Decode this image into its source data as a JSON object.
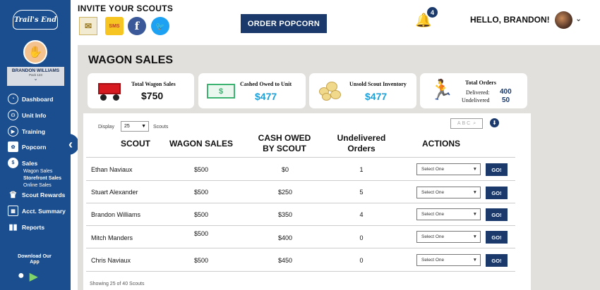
{
  "sidebar": {
    "logo_text": "Trail's End",
    "user": {
      "name": "BRANDON WILLIAMS",
      "pack": "Pack 123"
    },
    "nav": [
      {
        "label": "Dashboard",
        "icon": "gauge-icon"
      },
      {
        "label": "Unit Info",
        "icon": "users-icon"
      },
      {
        "label": "Training",
        "icon": "play-icon"
      },
      {
        "label": "Popcorn",
        "icon": "popcorn-icon"
      },
      {
        "label": "Sales",
        "icon": "dollar-icon"
      },
      {
        "label": "Scout Rewards",
        "icon": "trophy-icon"
      },
      {
        "label": "Acct. Summary",
        "icon": "calculator-icon"
      },
      {
        "label": "Reports",
        "icon": "bar-chart-icon"
      }
    ],
    "sales_sub": [
      "Wagon Sales",
      "Storefront Sales",
      "Online Sales"
    ],
    "download_text": "Download Our App"
  },
  "header": {
    "invite_title": "INVITE YOUR SCOUTS",
    "sms_label": "SMS",
    "order_button": "ORDER POPCORN",
    "notification_count": "4",
    "greeting": "HELLO, BRANDON!"
  },
  "page_title": "WAGON SALES",
  "summary": {
    "wagon": {
      "label": "Total Wagon Sales",
      "value": "$750"
    },
    "cash": {
      "label": "Cashed Owed to Unit",
      "value": "$477"
    },
    "inventory": {
      "label": "Unsold Scout Inventory",
      "value": "$477"
    },
    "orders": {
      "label": "Total Orders",
      "delivered_label": "Delivered:",
      "delivered": "400",
      "undelivered_label": "Undelivered",
      "undelivered": "50"
    }
  },
  "controls": {
    "display_label": "Display",
    "display_value": "25",
    "scouts_label": "Scouts",
    "search_placeholder": "ABC"
  },
  "table": {
    "headers": {
      "scout": "SCOUT",
      "wagon_sales": "WAGON SALES",
      "cash_owed_1": "CASH OWED",
      "cash_owed_2": "BY SCOUT",
      "undelivered_1": "Undelivered",
      "undelivered_2": "Orders",
      "actions": "ACTIONS"
    },
    "rows": [
      {
        "scout": "Ethan Naviaux",
        "wagon": "$500",
        "cash": "$0",
        "undelivered": "1"
      },
      {
        "scout": "Stuart Alexander",
        "wagon": "$500",
        "cash": "$250",
        "undelivered": "5"
      },
      {
        "scout": "Brandon Williams",
        "wagon": "$500",
        "cash": "$350",
        "undelivered": "4"
      },
      {
        "scout": "Mitch Manders",
        "wagon": "$500",
        "cash": "$400",
        "undelivered": "0"
      },
      {
        "scout": "Chris Naviaux",
        "wagon": "$500",
        "cash": "$450",
        "undelivered": "0"
      }
    ],
    "select_placeholder": "Select One",
    "go_label": "GO!",
    "footer": "Showing 25 of 40 Scouts"
  }
}
